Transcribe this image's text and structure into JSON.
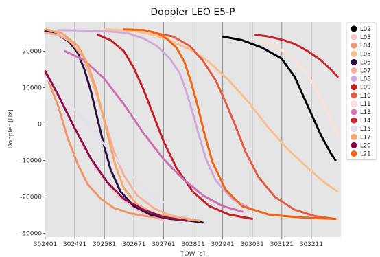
{
  "chart_data": {
    "type": "scatter",
    "title": "Doppler LEO E5-P",
    "xlabel": "TOW [s]",
    "ylabel": "Doppler [Hz]",
    "xlim": [
      302401,
      303301
    ],
    "ylim": [
      -31000,
      28000
    ],
    "xticks": [
      302401,
      302491,
      302581,
      302671,
      302761,
      302851,
      302941,
      303031,
      303121,
      303211
    ],
    "yticks": [
      -30000,
      -20000,
      -10000,
      0,
      10000,
      20000
    ],
    "grid": "vertical",
    "legend_position": "right-outside-top",
    "background": "#e5e5e5",
    "series": [
      {
        "name": "L02",
        "color": "#000004",
        "x": [
          302941,
          303000,
          303060,
          303120,
          303160,
          303200,
          303240,
          303270,
          303285
        ],
        "y": [
          24000,
          23000,
          21000,
          18000,
          13000,
          5000,
          -3000,
          -8000,
          -10000
        ]
      },
      {
        "name": "L03",
        "color": "#f5c4c4",
        "x": [
          302401,
          302430,
          302460,
          302490,
          302520,
          302560,
          302600,
          302640,
          302680,
          302720,
          302761
        ],
        "y": [
          14000,
          9500,
          4500,
          -1000,
          -6500,
          -12500,
          -17500,
          -21000,
          -23500,
          -25200,
          -26500
        ]
      },
      {
        "name": "L04",
        "color": "#f0956a",
        "x": [
          302401,
          302440,
          302470,
          302500,
          302530,
          302570,
          302610,
          302660,
          302710,
          302761
        ],
        "y": [
          14000,
          5000,
          -4000,
          -11000,
          -16500,
          -20500,
          -23000,
          -24500,
          -25300,
          -25700
        ]
      },
      {
        "name": "L05",
        "color": "#f8c08a",
        "x": [
          302581,
          302630,
          302680,
          302730,
          302780,
          302840,
          302900,
          302960,
          303020,
          303080,
          303140,
          303200,
          303250,
          303291
        ],
        "y": [
          26000,
          25800,
          25400,
          24500,
          23000,
          20500,
          17000,
          12000,
          6000,
          -1000,
          -7000,
          -12000,
          -16000,
          -18500
        ]
      },
      {
        "name": "L06",
        "color": "#2d1140",
        "x": [
          302401,
          302440,
          302475,
          302500,
          302520,
          302540,
          302560,
          302580,
          302600,
          302630,
          302670,
          302720,
          302780,
          302840,
          302880
        ],
        "y": [
          25500,
          24500,
          22500,
          19500,
          15000,
          9000,
          1500,
          -6000,
          -12500,
          -18500,
          -22500,
          -24800,
          -26000,
          -26500,
          -27000
        ]
      },
      {
        "name": "L07",
        "color": "#f3b09b",
        "x": [
          302401,
          302440,
          302480,
          302510,
          302535,
          302560,
          302585,
          302610,
          302640,
          302680,
          302730,
          302780,
          302841
        ],
        "y": [
          25000,
          24500,
          22500,
          19000,
          14000,
          7500,
          0,
          -7500,
          -14000,
          -19500,
          -23000,
          -25000,
          -26000
        ]
      },
      {
        "name": "L08",
        "color": "#d0a8dd",
        "x": [
          302441,
          302510,
          302580,
          302650,
          302700,
          302740,
          302780,
          302810,
          302830,
          302850,
          302870,
          302890,
          302920,
          302970,
          303031
        ],
        "y": [
          25800,
          25700,
          25500,
          25000,
          23500,
          21500,
          18000,
          14000,
          9000,
          3000,
          -3500,
          -9500,
          -15500,
          -20500,
          -23500
        ]
      },
      {
        "name": "L09",
        "color": "#c41e27",
        "x": [
          302561,
          302600,
          302640,
          302670,
          302700,
          302730,
          302760,
          302800,
          302850,
          302900,
          302960,
          303031
        ],
        "y": [
          24500,
          23000,
          20000,
          15500,
          9500,
          2500,
          -4500,
          -12000,
          -18500,
          -22500,
          -24800,
          -26000
        ]
      },
      {
        "name": "L10",
        "color": "#e35a42",
        "x": [
          302731,
          302790,
          302840,
          302880,
          302920,
          302950,
          302980,
          303010,
          303050,
          303100,
          303160,
          303220,
          303281
        ],
        "y": [
          25000,
          24000,
          21500,
          17500,
          12000,
          6000,
          -500,
          -7500,
          -14500,
          -20000,
          -23500,
          -25200,
          -26000
        ]
      },
      {
        "name": "L11",
        "color": "#fbe0d7",
        "x": [
          303051,
          303100,
          303150,
          303200,
          303240,
          303270,
          303291
        ],
        "y": [
          23000,
          21500,
          18500,
          13500,
          7000,
          1000,
          -3000
        ]
      },
      {
        "name": "L13",
        "color": "#cc6fb3",
        "x": [
          302461,
          302520,
          302580,
          302640,
          302700,
          302760,
          302820,
          302880,
          302941,
          303001
        ],
        "y": [
          20000,
          17500,
          12500,
          5500,
          -2500,
          -9500,
          -15000,
          -19500,
          -22500,
          -24000
        ]
      },
      {
        "name": "L14",
        "color": "#c8242a",
        "x": [
          303041,
          303080,
          303120,
          303160,
          303200,
          303240,
          303270,
          303291
        ],
        "y": [
          24500,
          24000,
          23200,
          22000,
          20000,
          17500,
          15000,
          13000
        ]
      },
      {
        "name": "L15",
        "color": "#e5e0ee",
        "x": [
          302401,
          302460,
          302520,
          302580,
          302640,
          302700,
          302761
        ],
        "y": [
          13000,
          7000,
          1000,
          -5500,
          -12000,
          -17500,
          -21500
        ]
      },
      {
        "name": "L17",
        "color": "#f4a66c",
        "x": [
          302401,
          302450,
          302500,
          302530,
          302555,
          302575,
          302595,
          302615,
          302640,
          302680,
          302730,
          302800,
          302871
        ],
        "y": [
          26000,
          25000,
          21500,
          16500,
          10000,
          3000,
          -4500,
          -11500,
          -17500,
          -22000,
          -24500,
          -25800,
          -26500
        ]
      },
      {
        "name": "L20",
        "color": "#8e0e4e",
        "x": [
          302401,
          302440,
          302490,
          302540,
          302590,
          302640,
          302700,
          302760,
          302830
        ],
        "y": [
          14500,
          8000,
          -1000,
          -9500,
          -16000,
          -20500,
          -23500,
          -25500,
          -26500
        ]
      },
      {
        "name": "L21",
        "color": "#f06414",
        "x": [
          302641,
          302700,
          302740,
          302770,
          302800,
          302825,
          302845,
          302865,
          302885,
          302910,
          302950,
          303000,
          303080,
          303160,
          303220,
          303285
        ],
        "y": [
          26000,
          25800,
          25000,
          23500,
          21000,
          17000,
          11500,
          5000,
          -2500,
          -10500,
          -18000,
          -22500,
          -24800,
          -25500,
          -25800,
          -26000
        ]
      }
    ]
  }
}
